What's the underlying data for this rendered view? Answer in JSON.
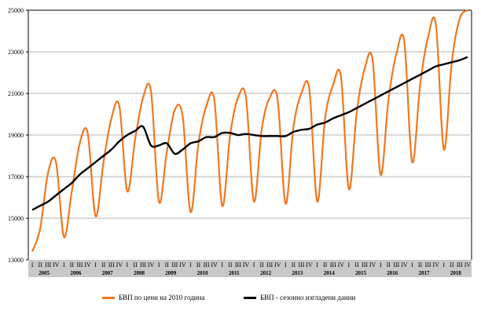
{
  "chart_data": {
    "type": "line",
    "title": "",
    "xlabel": "",
    "ylabel": "",
    "ylim": [
      13000,
      25000
    ],
    "yticks": [
      13000,
      15000,
      17000,
      19000,
      21000,
      23000,
      25000
    ],
    "grid": true,
    "legend_position": "bottom",
    "years": [
      "2005",
      "2006",
      "2007",
      "2008",
      "2009",
      "2010",
      "2011",
      "2012",
      "2013",
      "2014",
      "2015",
      "2016",
      "2017",
      "2018"
    ],
    "quarters": [
      "I",
      "II",
      "III",
      "IV"
    ],
    "series": [
      {
        "name": "БВП по цени на 2010 година",
        "color": "#f07820",
        "values": [
          13400,
          14500,
          17200,
          17700,
          14100,
          16300,
          18600,
          19100,
          15100,
          17700,
          19800,
          20400,
          16300,
          18800,
          20800,
          21100,
          15800,
          18200,
          20200,
          19900,
          15300,
          18600,
          20400,
          20700,
          15600,
          19000,
          20800,
          20800,
          15800,
          19300,
          20800,
          20700,
          15700,
          19400,
          21000,
          21200,
          15800,
          19800,
          21400,
          21800,
          16400,
          20100,
          22200,
          22600,
          17100,
          20700,
          22900,
          23500,
          17700,
          21400,
          23700,
          24300,
          18300,
          22500,
          24600,
          25000
        ]
      },
      {
        "name": "БВП - сезонно изгладени данни",
        "color": "#000000",
        "values": [
          15400,
          15600,
          15800,
          16100,
          16400,
          16700,
          17100,
          17400,
          17700,
          18000,
          18300,
          18700,
          19000,
          19200,
          19400,
          18500,
          18500,
          18600,
          18100,
          18300,
          18600,
          18700,
          18900,
          18900,
          19100,
          19100,
          19000,
          19050,
          19000,
          18950,
          18950,
          18950,
          18950,
          19150,
          19250,
          19300,
          19500,
          19600,
          19800,
          19950,
          20100,
          20300,
          20500,
          20700,
          20900,
          21100,
          21300,
          21500,
          21700,
          21900,
          22100,
          22300,
          22400,
          22500,
          22600,
          22750
        ]
      }
    ]
  }
}
